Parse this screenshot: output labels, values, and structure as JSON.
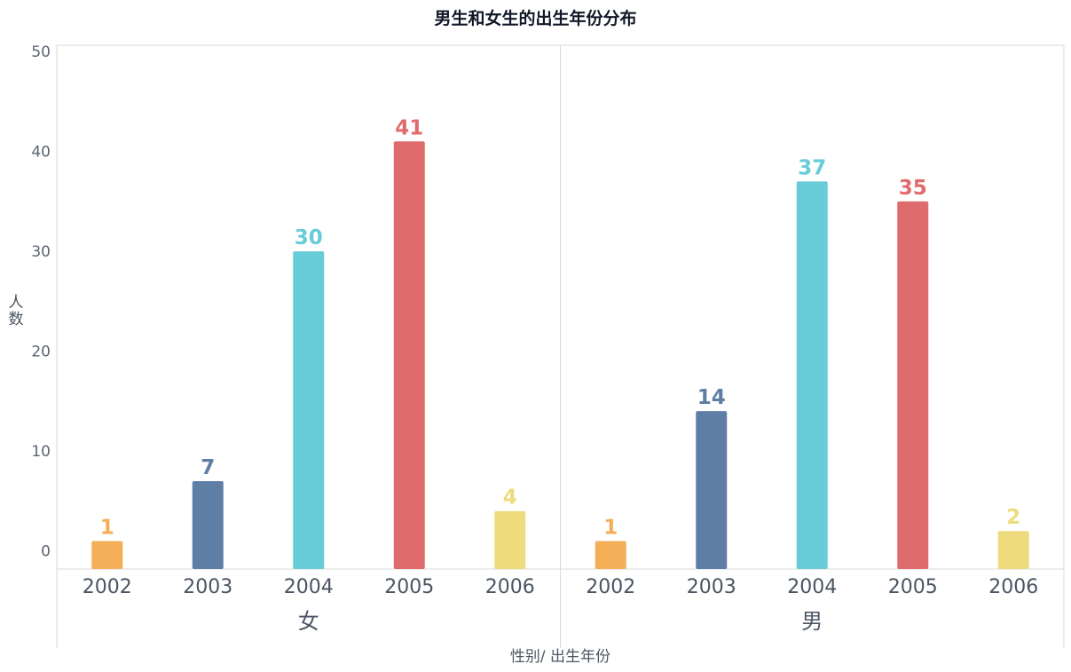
{
  "chart_data": {
    "type": "bar",
    "title": "男生和女生的出生年份分布",
    "xlabel": "性别/ 出生年份",
    "ylabel": "人数",
    "ylim": [
      -1.8,
      50
    ],
    "yticks": [
      0,
      10,
      20,
      30,
      40,
      50
    ],
    "grid": false,
    "categories": [
      "2002",
      "2003",
      "2004",
      "2005",
      "2006"
    ],
    "category_colors": [
      "#F5AE58",
      "#5E7EA6",
      "#67CBD8",
      "#E06B6C",
      "#EDDB7D"
    ],
    "groups": [
      {
        "name": "女",
        "values": [
          1,
          7,
          30,
          41,
          4
        ]
      },
      {
        "name": "男",
        "values": [
          1,
          14,
          37,
          35,
          2
        ]
      }
    ]
  }
}
